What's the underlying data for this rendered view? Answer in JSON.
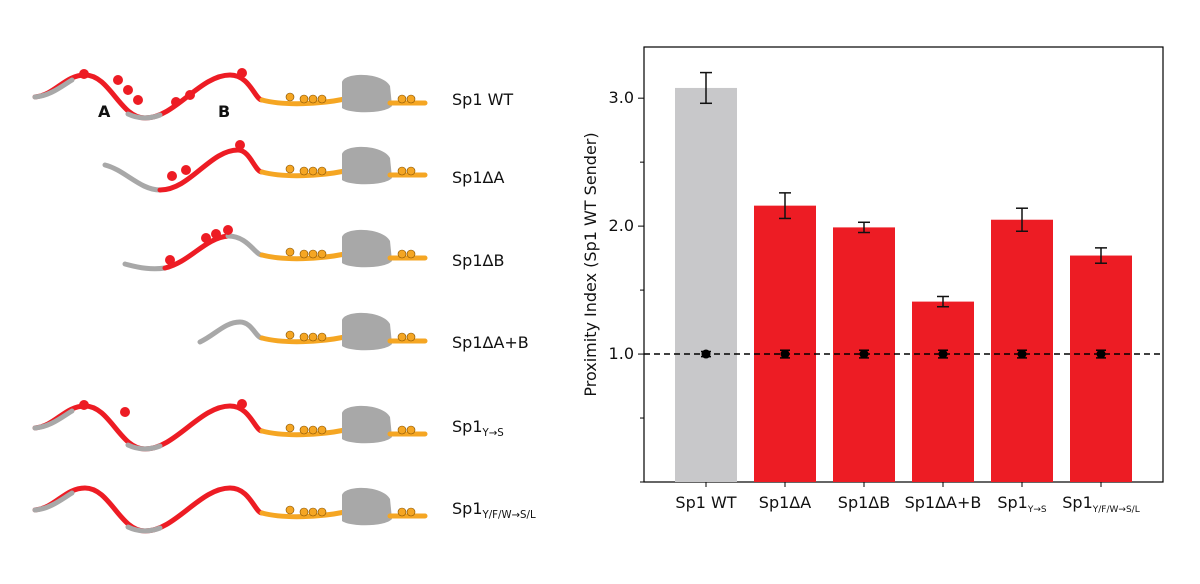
{
  "diagram": {
    "region_labels": [
      "A",
      "B"
    ],
    "constructs": [
      {
        "label": "Sp1 WT"
      },
      {
        "label": "Sp1ΔA"
      },
      {
        "label": "Sp1ΔB"
      },
      {
        "label": "Sp1ΔA+B"
      },
      {
        "label": "Sp1",
        "sub": "Y→S"
      },
      {
        "label": "Sp1",
        "sub": "Y/F/W→S/L"
      }
    ]
  },
  "chart_data": {
    "type": "bar",
    "y_label": "Proximity Index (Sp1 WT Sender)",
    "categories": [
      "Sp1 WT",
      "Sp1ΔA",
      "Sp1ΔB",
      "Sp1ΔA+B",
      "Sp1",
      "Sp1"
    ],
    "category_subscripts": [
      null,
      null,
      null,
      null,
      "Y→S",
      "Y/F/W→S/L"
    ],
    "values": [
      3.08,
      2.16,
      1.99,
      1.41,
      2.05,
      1.77
    ],
    "errors": [
      0.12,
      0.1,
      0.04,
      0.04,
      0.09,
      0.06
    ],
    "colors": [
      "#c8c8ca",
      "#ed1c24",
      "#ed1c24",
      "#ed1c24",
      "#ed1c24",
      "#ed1c24"
    ],
    "baseline_values": [
      1,
      1,
      1,
      1,
      1,
      1
    ],
    "baseline_errors": [
      0.02,
      0.03,
      0.03,
      0.03,
      0.03,
      0.03
    ],
    "reference_line": 1,
    "ylim": [
      0,
      3.4
    ],
    "yticks": [
      {
        "value": 1,
        "label": "1.0"
      },
      {
        "value": 2,
        "label": "2.0"
      },
      {
        "value": 3,
        "label": "3.0"
      }
    ],
    "yticks_minor": [
      0,
      0.5,
      1.5,
      2.5
    ]
  }
}
